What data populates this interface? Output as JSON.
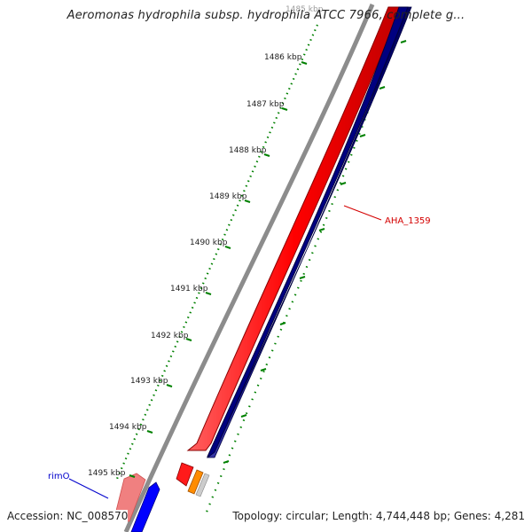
{
  "title": "Aeromonas hydrophila subsp. hydrophila ATCC 7966, complete g...",
  "footer": {
    "accession": "Accession: NC_008570",
    "topology": "Topology: circular; Length: 4,744,448 bp; Genes: 4,281"
  },
  "ticks": {
    "partial_top": "1485 kbp",
    "labels": [
      "1486 kbp",
      "1487 kbp",
      "1488 kbp",
      "1489 kbp",
      "1490 kbp",
      "1491 kbp",
      "1492 kbp",
      "1493 kbp",
      "1494 kbp",
      "1495 kbp"
    ]
  },
  "genes": {
    "aha_1359": {
      "label": "AHA_1359",
      "color": "#d40000"
    },
    "rimO": {
      "label": "rimO",
      "color": "#0000cc"
    }
  },
  "colors": {
    "backbone": "#8c8c8c",
    "forward_strand": "#ff0000",
    "reverse_strand": "#000080",
    "tick_marks": "#007a00",
    "rimO_gene": "#0000ff",
    "rimO_pale": "#f08080",
    "small_orange": "#ff8c00"
  }
}
